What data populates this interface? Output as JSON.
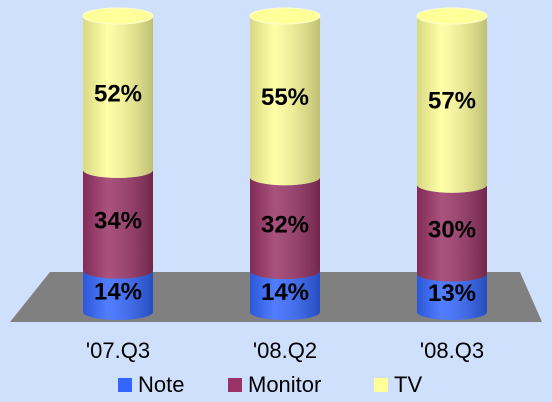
{
  "chart_data": {
    "type": "stacked-cylinder",
    "categories": [
      "'07.Q3",
      "'08.Q2",
      "'08.Q3"
    ],
    "series": [
      {
        "name": "Note",
        "color": "#3366ff",
        "values": [
          14,
          14,
          13
        ],
        "value_labels": [
          "14%",
          "14%",
          "13%"
        ]
      },
      {
        "name": "Monitor",
        "color": "#993366",
        "values": [
          34,
          32,
          30
        ],
        "value_labels": [
          "34%",
          "32%",
          "30%"
        ]
      },
      {
        "name": "TV",
        "color": "#ffff99",
        "values": [
          52,
          55,
          57
        ],
        "value_labels": [
          "52%",
          "55%",
          "57%"
        ]
      }
    ],
    "legend": "bottom"
  }
}
